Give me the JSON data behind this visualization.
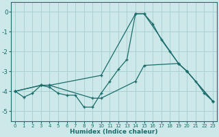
{
  "xlabel": "Humidex (Indice chaleur)",
  "bg_color": "#cce8e8",
  "grid_color": "#aad0d0",
  "line_color": "#1a6b6b",
  "xlim": [
    -0.5,
    23.5
  ],
  "ylim": [
    -5.5,
    0.5
  ],
  "yticks": [
    0,
    -1,
    -2,
    -3,
    -4,
    -5
  ],
  "xticks": [
    0,
    1,
    2,
    3,
    4,
    5,
    6,
    7,
    8,
    9,
    10,
    11,
    12,
    13,
    14,
    15,
    16,
    17,
    18,
    19,
    20,
    21,
    22,
    23
  ],
  "line1_x": [
    0,
    1,
    2,
    3,
    4,
    5,
    6,
    7,
    8,
    9,
    10,
    11,
    12,
    13,
    14,
    15,
    16,
    17,
    18,
    19,
    20,
    21,
    22,
    23
  ],
  "line1_y": [
    -4.0,
    -4.3,
    -4.1,
    -3.7,
    -3.8,
    -4.1,
    -4.2,
    -4.2,
    -4.8,
    -4.8,
    -4.1,
    -3.5,
    -2.9,
    -2.4,
    -0.1,
    -0.1,
    -0.6,
    -1.4,
    -2.0,
    -2.6,
    -3.0,
    -3.5,
    -4.1,
    -4.5
  ],
  "line2_x": [
    0,
    3,
    4,
    10,
    14,
    15,
    19,
    20,
    23
  ],
  "line2_y": [
    -4.0,
    -3.7,
    -3.7,
    -3.2,
    -0.1,
    -0.1,
    -2.6,
    -3.0,
    -4.5
  ],
  "line3_x": [
    0,
    3,
    4,
    9,
    10,
    14,
    15,
    19,
    20,
    23
  ],
  "line3_y": [
    -4.0,
    -3.7,
    -3.7,
    -4.35,
    -4.35,
    -3.5,
    -2.7,
    -2.6,
    -3.0,
    -4.5
  ]
}
